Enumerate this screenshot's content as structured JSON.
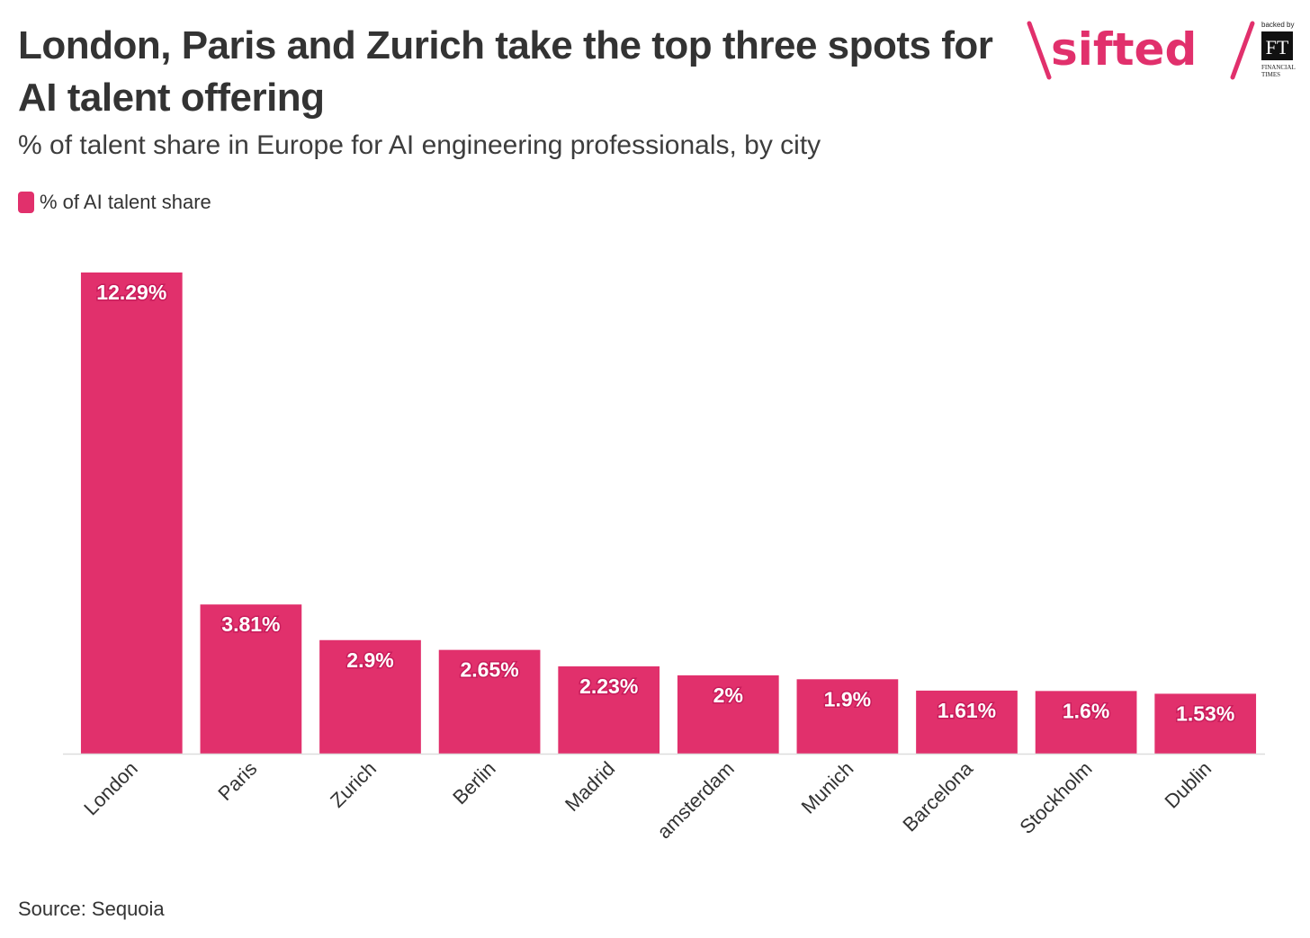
{
  "header": {
    "title": "London, Paris and Zurich take the top three spots for AI talent offering",
    "subtitle": "% of talent share in Europe for AI engineering professionals, by city"
  },
  "brand": {
    "name": "sifted",
    "backed_by": "backed by",
    "ft_mark": "FT",
    "ft_line1": "FINANCIAL",
    "ft_line2": "TIMES",
    "color": "#e1306c"
  },
  "legend": {
    "label": "% of AI talent share",
    "color": "#e1306c"
  },
  "source": "Source: Sequoia",
  "chart_data": {
    "type": "bar",
    "categories": [
      "London",
      "Paris",
      "Zurich",
      "Berlin",
      "Madrid",
      "amsterdam",
      "Munich",
      "Barcelona",
      "Stockholm",
      "Dublin"
    ],
    "series": [
      {
        "name": "% of AI talent share",
        "values": [
          12.29,
          3.81,
          2.9,
          2.65,
          2.23,
          2,
          1.9,
          1.61,
          1.6,
          1.53
        ]
      }
    ],
    "data_labels": [
      "12.29%",
      "3.81%",
      "2.9%",
      "2.65%",
      "2.23%",
      "2%",
      "1.9%",
      "1.61%",
      "1.6%",
      "1.53%"
    ],
    "ylim": [
      0,
      12.29
    ],
    "grid": false,
    "legend_position": "top-left",
    "bar_color": "#e1306c",
    "axis_color": "#dddddd"
  }
}
